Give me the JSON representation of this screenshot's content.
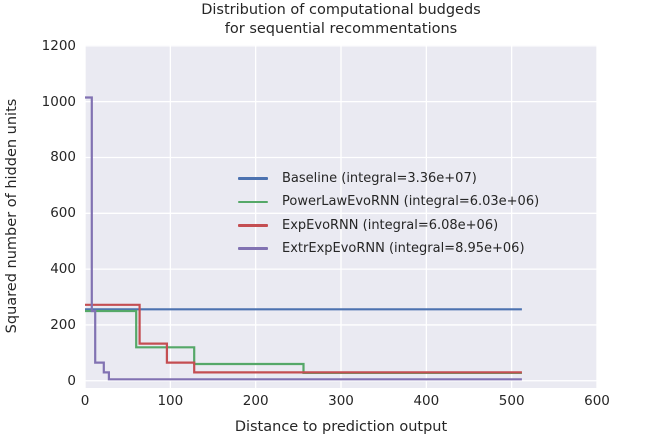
{
  "title": {
    "line1": "Distribution of computational budgeds",
    "line2": "for sequential recommentations"
  },
  "chart_data": {
    "type": "line",
    "title": "Distribution of computational budgeds for sequential recommentations",
    "xlabel": "Distance to prediction output",
    "ylabel": "Squared number of hidden units",
    "xlim": [
      0,
      600
    ],
    "ylim": [
      -26,
      1203
    ],
    "xticks": [
      0,
      100,
      200,
      300,
      400,
      500,
      600
    ],
    "yticks": [
      0,
      200,
      400,
      600,
      800,
      1000,
      1200
    ],
    "grid": true,
    "drawstyle": "steps-post",
    "x_end": 512,
    "legend_position": "inside center-left, frameless",
    "series": [
      {
        "id": "baseline",
        "label": "Baseline (integral=3.36e+07)",
        "color": "#4C72B0",
        "points": [
          [
            0,
            256
          ]
        ]
      },
      {
        "id": "powerlaw-evornn",
        "label": "PowerLawEvoRNN (integral=6.03e+06)",
        "color": "#55A868",
        "points": [
          [
            0,
            250
          ],
          [
            60,
            120
          ],
          [
            128,
            60
          ],
          [
            256,
            28
          ]
        ]
      },
      {
        "id": "exp-evornn",
        "label": "ExpEvoRNN (integral=6.08e+06)",
        "color": "#C44E52",
        "points": [
          [
            0,
            272
          ],
          [
            64,
            133
          ],
          [
            96,
            65
          ],
          [
            128,
            30
          ]
        ]
      },
      {
        "id": "extrexp-evornn",
        "label": "ExtrExpEvoRNN (integral=8.95e+06)",
        "color": "#8172B2",
        "points": [
          [
            0,
            1015
          ],
          [
            8,
            250
          ],
          [
            12,
            65
          ],
          [
            22,
            30
          ],
          [
            28,
            5
          ]
        ]
      }
    ],
    "colors": {
      "plot_bg": "#EAEAF2",
      "grid": "#FFFFFF",
      "text": "#262626"
    }
  }
}
